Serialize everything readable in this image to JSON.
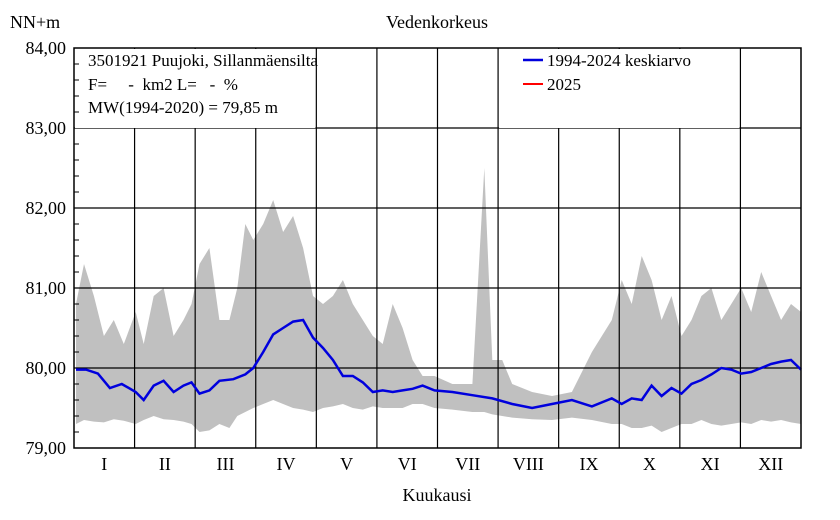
{
  "chart_data": {
    "type": "area",
    "title": "Vedenkorkeus",
    "ylabel": "NN+m",
    "xlabel": "Kuukausi",
    "ylim": [
      79.0,
      84.0
    ],
    "yticks": [
      "79,00",
      "80,00",
      "81,00",
      "82,00",
      "83,00",
      "84,00"
    ],
    "categories": [
      "I",
      "II",
      "III",
      "IV",
      "V",
      "VI",
      "VII",
      "VIII",
      "IX",
      "X",
      "XI",
      "XII"
    ],
    "info_lines": [
      "3501921 Puujoki, Sillanmäensilta",
      "F=     -  km2 L=   -  %",
      "MW(1994-2020) = 79,85 m"
    ],
    "legend": [
      {
        "label": "1994-2024 keskiarvo",
        "color": "#0000dd"
      },
      {
        "label": "2025",
        "color": "#ff0000"
      }
    ],
    "grid": true,
    "series": [
      {
        "name": "1994-2024 keskiarvo",
        "color": "#0000dd",
        "x": [
          1,
          6,
          12,
          18,
          24,
          31,
          35,
          40,
          45,
          50,
          55,
          59,
          63,
          68,
          73,
          80,
          86,
          90,
          95,
          100,
          105,
          110,
          115,
          120,
          125,
          130,
          135,
          140,
          145,
          150,
          155,
          160,
          165,
          170,
          175,
          181,
          190,
          200,
          210,
          220,
          230,
          240,
          250,
          260,
          270,
          275,
          280,
          285,
          290,
          295,
          300,
          305,
          310,
          315,
          320,
          325,
          330,
          335,
          340,
          345,
          350,
          355,
          360,
          365
        ],
        "values": [
          79.98,
          79.98,
          79.93,
          79.75,
          79.8,
          79.7,
          79.6,
          79.78,
          79.84,
          79.7,
          79.78,
          79.82,
          79.68,
          79.72,
          79.84,
          79.86,
          79.92,
          80.0,
          80.2,
          80.42,
          80.5,
          80.58,
          80.6,
          80.38,
          80.25,
          80.1,
          79.9,
          79.9,
          79.82,
          79.7,
          79.72,
          79.7,
          79.72,
          79.74,
          79.78,
          79.72,
          79.7,
          79.66,
          79.62,
          79.55,
          79.5,
          79.55,
          79.6,
          79.52,
          79.62,
          79.55,
          79.62,
          79.6,
          79.78,
          79.65,
          79.75,
          79.68,
          79.8,
          79.85,
          79.92,
          80.0,
          79.98,
          79.93,
          79.95,
          80.0,
          80.05,
          80.08,
          80.1,
          79.98
        ]
      },
      {
        "name": "2025",
        "color": "#ff0000",
        "x": [],
        "values": []
      }
    ],
    "range_band": {
      "color": "#c0c0c0",
      "x": [
        1,
        5,
        10,
        15,
        20,
        25,
        31,
        35,
        40,
        45,
        50,
        55,
        59,
        63,
        68,
        73,
        78,
        82,
        86,
        90,
        95,
        100,
        105,
        110,
        115,
        120,
        125,
        130,
        135,
        140,
        145,
        150,
        155,
        160,
        165,
        170,
        175,
        181,
        190,
        200,
        206,
        210,
        215,
        220,
        230,
        240,
        250,
        260,
        270,
        275,
        280,
        285,
        290,
        295,
        300,
        305,
        310,
        315,
        320,
        325,
        330,
        335,
        340,
        345,
        350,
        355,
        360,
        365
      ],
      "upper": [
        80.8,
        81.3,
        80.9,
        80.4,
        80.6,
        80.3,
        80.7,
        80.3,
        80.9,
        81.0,
        80.4,
        80.6,
        80.8,
        81.3,
        81.5,
        80.6,
        80.6,
        81.0,
        81.8,
        81.6,
        81.8,
        82.1,
        81.7,
        81.9,
        81.5,
        80.9,
        80.8,
        80.9,
        81.1,
        80.8,
        80.6,
        80.4,
        80.3,
        80.8,
        80.5,
        80.1,
        79.9,
        79.9,
        79.8,
        79.8,
        82.5,
        80.1,
        80.1,
        79.8,
        79.7,
        79.65,
        79.7,
        80.2,
        80.6,
        81.1,
        80.8,
        81.4,
        81.1,
        80.6,
        80.9,
        80.4,
        80.6,
        80.9,
        81.0,
        80.6,
        80.8,
        81.0,
        80.7,
        81.2,
        80.9,
        80.6,
        80.8,
        80.7
      ],
      "lower": [
        79.3,
        79.35,
        79.33,
        79.32,
        79.36,
        79.34,
        79.3,
        79.35,
        79.4,
        79.36,
        79.35,
        79.33,
        79.3,
        79.2,
        79.22,
        79.3,
        79.25,
        79.4,
        79.45,
        79.5,
        79.55,
        79.6,
        79.55,
        79.5,
        79.48,
        79.45,
        79.5,
        79.52,
        79.55,
        79.5,
        79.48,
        79.52,
        79.5,
        79.5,
        79.5,
        79.55,
        79.55,
        79.5,
        79.48,
        79.45,
        79.45,
        79.42,
        79.4,
        79.38,
        79.36,
        79.35,
        79.38,
        79.35,
        79.3,
        79.3,
        79.25,
        79.25,
        79.28,
        79.2,
        79.25,
        79.3,
        79.3,
        79.35,
        79.3,
        79.28,
        79.3,
        79.32,
        79.3,
        79.35,
        79.33,
        79.35,
        79.32,
        79.3
      ]
    }
  }
}
